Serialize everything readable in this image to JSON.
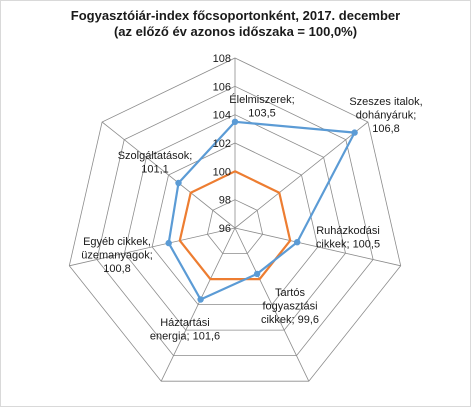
{
  "chart_data": {
    "type": "radar",
    "title_line1": "Fogyasztóiár-index főcsoportonként, 2017. december",
    "title_line2": "(az előző év azonos időszaka = 100,0%)",
    "rlim": [
      96,
      108
    ],
    "ticks": [
      "96",
      "98",
      "100",
      "102",
      "104",
      "106",
      "108"
    ],
    "tick_values": [
      96,
      98,
      100,
      102,
      104,
      106,
      108
    ],
    "grid": true,
    "reference_value": 100,
    "colors": {
      "series": "#5b9bd5",
      "reference": "#ed7d31",
      "grid": "#8c8c8c"
    },
    "categories": [
      {
        "lines": [
          "Élelmiszerek;",
          "103,5"
        ]
      },
      {
        "lines": [
          "Szeszes italok,",
          "dohányáruk;",
          "106,8"
        ]
      },
      {
        "lines": [
          "Ruházkodási",
          "cikkek; 100,5"
        ]
      },
      {
        "lines": [
          "Tartós",
          "fogyasztási",
          "cikkek; 99,6"
        ]
      },
      {
        "lines": [
          "Háztartási",
          "energia; 101,6"
        ]
      },
      {
        "lines": [
          "Egyéb cikkek,",
          "üzemanyagok;",
          "100,8"
        ]
      },
      {
        "lines": [
          "Szolgáltatások;",
          "101,1"
        ]
      }
    ],
    "values": [
      103.5,
      106.8,
      100.5,
      99.6,
      101.6,
      100.8,
      101.1
    ]
  }
}
